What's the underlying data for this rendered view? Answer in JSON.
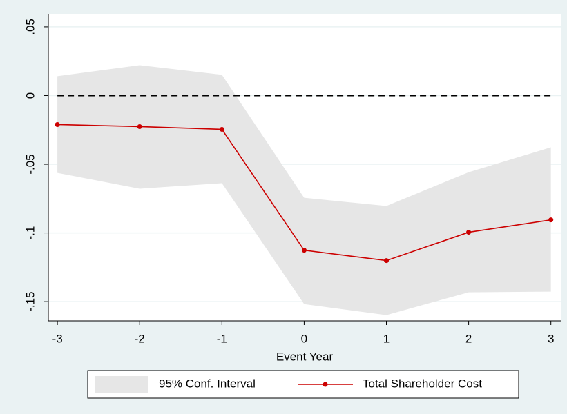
{
  "chart_data": {
    "type": "line",
    "x_label": "Event Year",
    "x": [
      -3,
      -2,
      -1,
      0,
      1,
      2,
      3
    ],
    "series": [
      {
        "name": "Total Shareholder Cost",
        "color": "#cc0000",
        "values": [
          -0.0211,
          -0.0226,
          -0.0246,
          -0.1126,
          -0.1201,
          -0.0995,
          -0.0905
        ]
      }
    ],
    "band": {
      "name": "95% Conf. Interval",
      "color": "#e6e6e6",
      "lower": [
        -0.0563,
        -0.0678,
        -0.0638,
        -0.1518,
        -0.1598,
        -0.1432,
        -0.1427
      ],
      "upper": [
        0.0141,
        0.0221,
        0.0151,
        -0.0744,
        -0.0804,
        -0.0558,
        -0.0377
      ]
    },
    "reference_line": 0,
    "xlim": [
      -3.11,
      3.12
    ],
    "xticks": [
      -3,
      -2,
      -1,
      0,
      1,
      2,
      3
    ],
    "ylim": [
      -0.164,
      0.0595
    ],
    "yticks": [
      {
        "value": -0.15,
        "label": "-.15"
      },
      {
        "value": -0.1,
        "label": "-.1"
      },
      {
        "value": -0.05,
        "label": "-.05"
      },
      0,
      {
        "value": 0.05,
        "label": ".05"
      }
    ],
    "grid": true,
    "legend": "bottom"
  }
}
